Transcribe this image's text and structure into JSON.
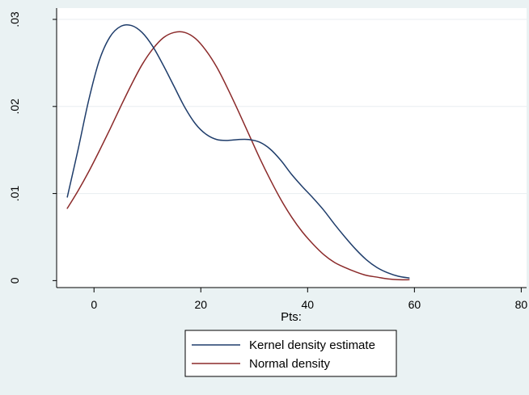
{
  "chart_data": {
    "type": "line",
    "title": "",
    "xlabel": "Pts:",
    "ylabel": "",
    "xlim": [
      -7,
      81
    ],
    "ylim": [
      -0.0008,
      0.0313
    ],
    "x_ticks": [
      0,
      20,
      40,
      60,
      80
    ],
    "x_tick_labels": [
      "0",
      "20",
      "40",
      "60",
      "80"
    ],
    "y_ticks": [
      0,
      0.01,
      0.02,
      0.03
    ],
    "y_tick_labels": [
      "0",
      ".01",
      ".02",
      ".03"
    ],
    "grid": true,
    "legend": "bottom",
    "series": [
      {
        "name": "Kernel density estimate",
        "color": "#1f3d6b",
        "x": [
          -5,
          -3,
          -1,
          1,
          3,
          5,
          7,
          9,
          11,
          13,
          15,
          17,
          19,
          21,
          23,
          25,
          27,
          29,
          31,
          33,
          35,
          37,
          39,
          41,
          43,
          45,
          47,
          49,
          51,
          53,
          55,
          57,
          59
        ],
        "y": [
          0.0096,
          0.015,
          0.0207,
          0.0253,
          0.028,
          0.0292,
          0.0293,
          0.0285,
          0.0269,
          0.0247,
          0.0223,
          0.0199,
          0.018,
          0.0168,
          0.0162,
          0.0161,
          0.0162,
          0.0162,
          0.0159,
          0.0151,
          0.0138,
          0.0122,
          0.0108,
          0.0095,
          0.0081,
          0.0065,
          0.005,
          0.0036,
          0.0024,
          0.0015,
          0.0009,
          0.0005,
          0.0003
        ]
      },
      {
        "name": "Normal density",
        "color": "#8b2a2a",
        "x": [
          -5,
          -3,
          -1,
          1,
          3,
          5,
          7,
          9,
          11,
          13,
          15,
          17,
          19,
          21,
          23,
          25,
          27,
          29,
          31,
          33,
          35,
          37,
          39,
          41,
          43,
          45,
          47,
          49,
          51,
          53,
          55,
          57,
          59
        ],
        "y": [
          0.0083,
          0.0103,
          0.0125,
          0.0149,
          0.0174,
          0.02,
          0.0225,
          0.0248,
          0.0266,
          0.0279,
          0.0285,
          0.0285,
          0.0278,
          0.0264,
          0.0245,
          0.0221,
          0.0195,
          0.0168,
          0.0141,
          0.0116,
          0.0093,
          0.0073,
          0.0056,
          0.0042,
          0.003,
          0.0021,
          0.0015,
          0.001,
          0.0006,
          0.0004,
          0.0002,
          0.0001,
          0.0001
        ]
      }
    ]
  }
}
